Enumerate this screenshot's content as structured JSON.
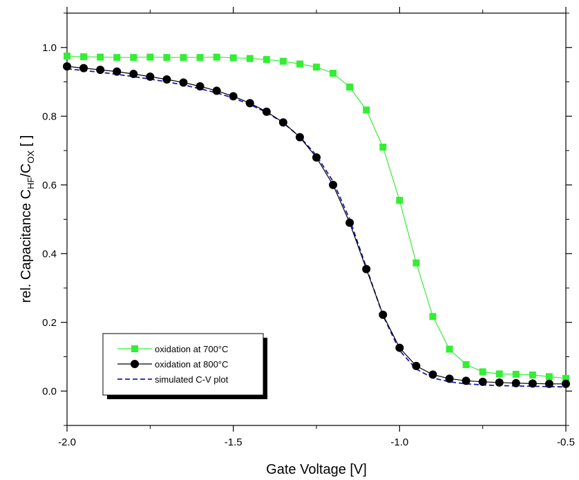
{
  "chart_data": {
    "type": "line",
    "xlabel": "Gate Voltage [V]",
    "ylabel": {
      "prefix": "rel. Capacitance C",
      "sub1": "HF",
      "middle": "/C",
      "sub2": "OX",
      "suffix": " [ ]"
    },
    "xlim": [
      -2.0,
      -0.5
    ],
    "ylim": [
      -0.1,
      1.1
    ],
    "x_ticks": [
      -2.0,
      -1.5,
      -1.0,
      -0.5
    ],
    "x_tick_labels": [
      "-2.0",
      "-1.5",
      "-1.0",
      "-0.5"
    ],
    "y_ticks": [
      0.0,
      0.2,
      0.4,
      0.6,
      0.8,
      1.0
    ],
    "y_tick_labels": [
      "0.0",
      "0.2",
      "0.4",
      "0.6",
      "0.8",
      "1.0"
    ],
    "grid": false,
    "legend_position": "bottom-left",
    "series": [
      {
        "name": "oxidation at 700°C",
        "color": "#33ee33",
        "marker": "square",
        "line": "solid",
        "x": [
          -2.0,
          -1.95,
          -1.9,
          -1.85,
          -1.8,
          -1.75,
          -1.7,
          -1.65,
          -1.6,
          -1.55,
          -1.5,
          -1.45,
          -1.4,
          -1.35,
          -1.3,
          -1.25,
          -1.2,
          -1.15,
          -1.1,
          -1.05,
          -1.0,
          -0.95,
          -0.9,
          -0.85,
          -0.8,
          -0.75,
          -0.7,
          -0.65,
          -0.6,
          -0.55,
          -0.5
        ],
        "y": [
          0.975,
          0.973,
          0.972,
          0.971,
          0.971,
          0.972,
          0.971,
          0.971,
          0.971,
          0.972,
          0.97,
          0.968,
          0.965,
          0.96,
          0.952,
          0.943,
          0.925,
          0.885,
          0.818,
          0.71,
          0.555,
          0.373,
          0.217,
          0.122,
          0.077,
          0.056,
          0.05,
          0.049,
          0.047,
          0.042,
          0.037
        ]
      },
      {
        "name": "oxidation at 800°C",
        "color": "#000000",
        "marker": "circle",
        "line": "solid",
        "x": [
          -2.0,
          -1.95,
          -1.9,
          -1.85,
          -1.8,
          -1.75,
          -1.7,
          -1.65,
          -1.6,
          -1.55,
          -1.5,
          -1.45,
          -1.4,
          -1.35,
          -1.3,
          -1.25,
          -1.2,
          -1.15,
          -1.1,
          -1.05,
          -1.0,
          -0.95,
          -0.9,
          -0.85,
          -0.8,
          -0.75,
          -0.7,
          -0.65,
          -0.6,
          -0.55,
          -0.5
        ],
        "y": [
          0.945,
          0.94,
          0.935,
          0.93,
          0.923,
          0.915,
          0.907,
          0.898,
          0.887,
          0.874,
          0.858,
          0.838,
          0.813,
          0.782,
          0.739,
          0.68,
          0.6,
          0.49,
          0.355,
          0.222,
          0.126,
          0.073,
          0.048,
          0.036,
          0.03,
          0.027,
          0.025,
          0.023,
          0.022,
          0.021,
          0.021
        ]
      },
      {
        "name": "simulated C-V plot",
        "color": "#1a1ab8",
        "marker": "none",
        "line": "dashed",
        "x": [
          -2.0,
          -1.95,
          -1.9,
          -1.85,
          -1.8,
          -1.75,
          -1.7,
          -1.65,
          -1.6,
          -1.55,
          -1.5,
          -1.45,
          -1.4,
          -1.35,
          -1.3,
          -1.25,
          -1.2,
          -1.15,
          -1.1,
          -1.05,
          -1.0,
          -0.95,
          -0.9,
          -0.85,
          -0.8,
          -0.75,
          -0.7,
          -0.65,
          -0.6,
          -0.55,
          -0.5
        ],
        "y": [
          0.938,
          0.933,
          0.928,
          0.922,
          0.915,
          0.908,
          0.9,
          0.891,
          0.88,
          0.868,
          0.853,
          0.834,
          0.811,
          0.781,
          0.74,
          0.686,
          0.61,
          0.5,
          0.36,
          0.22,
          0.118,
          0.064,
          0.038,
          0.027,
          0.021,
          0.018,
          0.016,
          0.015,
          0.014,
          0.013,
          0.012
        ]
      }
    ]
  }
}
